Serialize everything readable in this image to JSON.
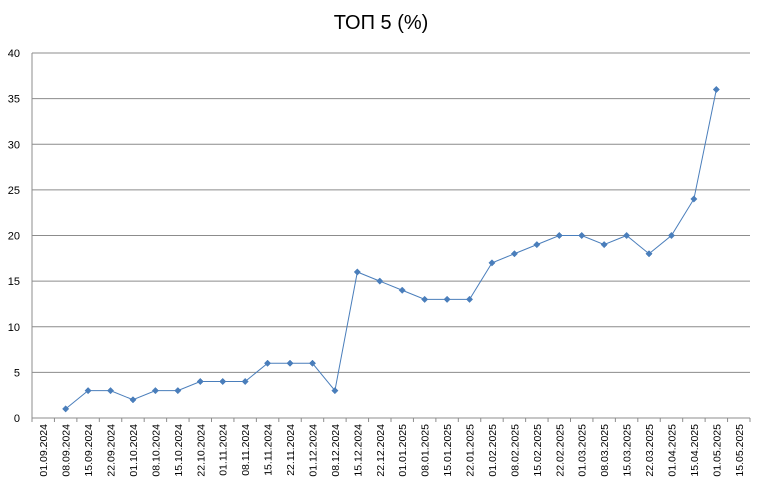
{
  "chart_data": {
    "type": "line",
    "title": "ТОП 5 (%)",
    "xlabel": "",
    "ylabel": "",
    "ylim": [
      0,
      40
    ],
    "yticks": [
      0,
      5,
      10,
      15,
      20,
      25,
      30,
      35,
      40
    ],
    "grid": true,
    "legend": "none",
    "categories": [
      "01.09.2024",
      "08.09.2024",
      "15.09.2024",
      "22.09.2024",
      "01.10.2024",
      "08.10.2024",
      "15.10.2024",
      "22.10.2024",
      "01.11.2024",
      "08.11.2024",
      "15.11.2024",
      "22.11.2024",
      "01.12.2024",
      "08.12.2024",
      "15.12.2024",
      "22.12.2024",
      "01.01.2025",
      "08.01.2025",
      "15.01.2025",
      "22.01.2025",
      "01.02.2025",
      "08.02.2025",
      "15.02.2025",
      "22.02.2025",
      "01.03.2025",
      "08.03.2025",
      "15.03.2025",
      "22.03.2025",
      "01.04.2025",
      "15.04.2025",
      "01.05.2025",
      "15.05.2025"
    ],
    "series": [
      {
        "color": "#4a7ebb",
        "values": [
          null,
          1,
          3,
          3,
          2,
          3,
          3,
          4,
          4,
          4,
          6,
          6,
          6,
          3,
          16,
          15,
          14,
          13,
          13,
          13,
          17,
          18,
          19,
          20,
          20,
          19,
          20,
          18,
          20,
          24,
          36,
          null
        ]
      }
    ]
  }
}
